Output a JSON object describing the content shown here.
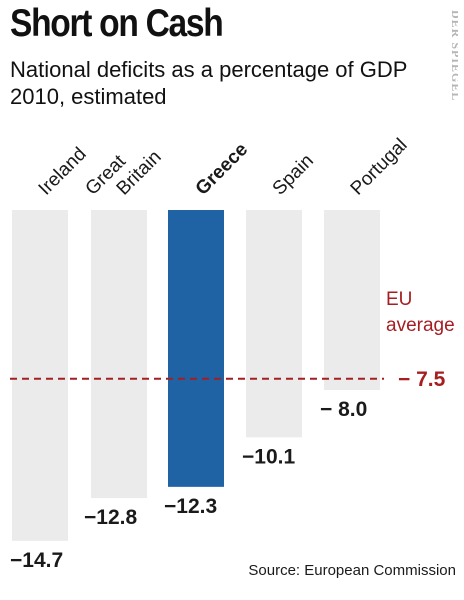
{
  "header": {
    "title": "Short on Cash",
    "subtitle": "National deficits as a percentage of GDP 2010, estimated",
    "brand": "DER SPIEGEL"
  },
  "source": "Source: European Commission",
  "colors": {
    "bar": "#ebebeb",
    "highlight": "#1f63a5",
    "average": "#a41e22",
    "text": "#1a1a1a"
  },
  "chart_data": {
    "type": "bar",
    "title": "Short on Cash",
    "subtitle": "National deficits as a percentage of GDP 2010, estimated",
    "categories": [
      "Ireland",
      "Great Britain",
      "Greece",
      "Spain",
      "Portugal"
    ],
    "values": [
      -14.7,
      -12.8,
      -12.3,
      -10.1,
      -8.0
    ],
    "value_labels": [
      "−14.7",
      "−12.8",
      "−12.3",
      "−10.1",
      "− 8.0"
    ],
    "highlight": "Greece",
    "reference_line": {
      "label_lines": [
        "EU",
        "average"
      ],
      "value": -7.5,
      "value_label": "− 7.5",
      "style": "dashed"
    },
    "xlabel": "",
    "ylabel": "",
    "grid": false,
    "legend": "none"
  }
}
